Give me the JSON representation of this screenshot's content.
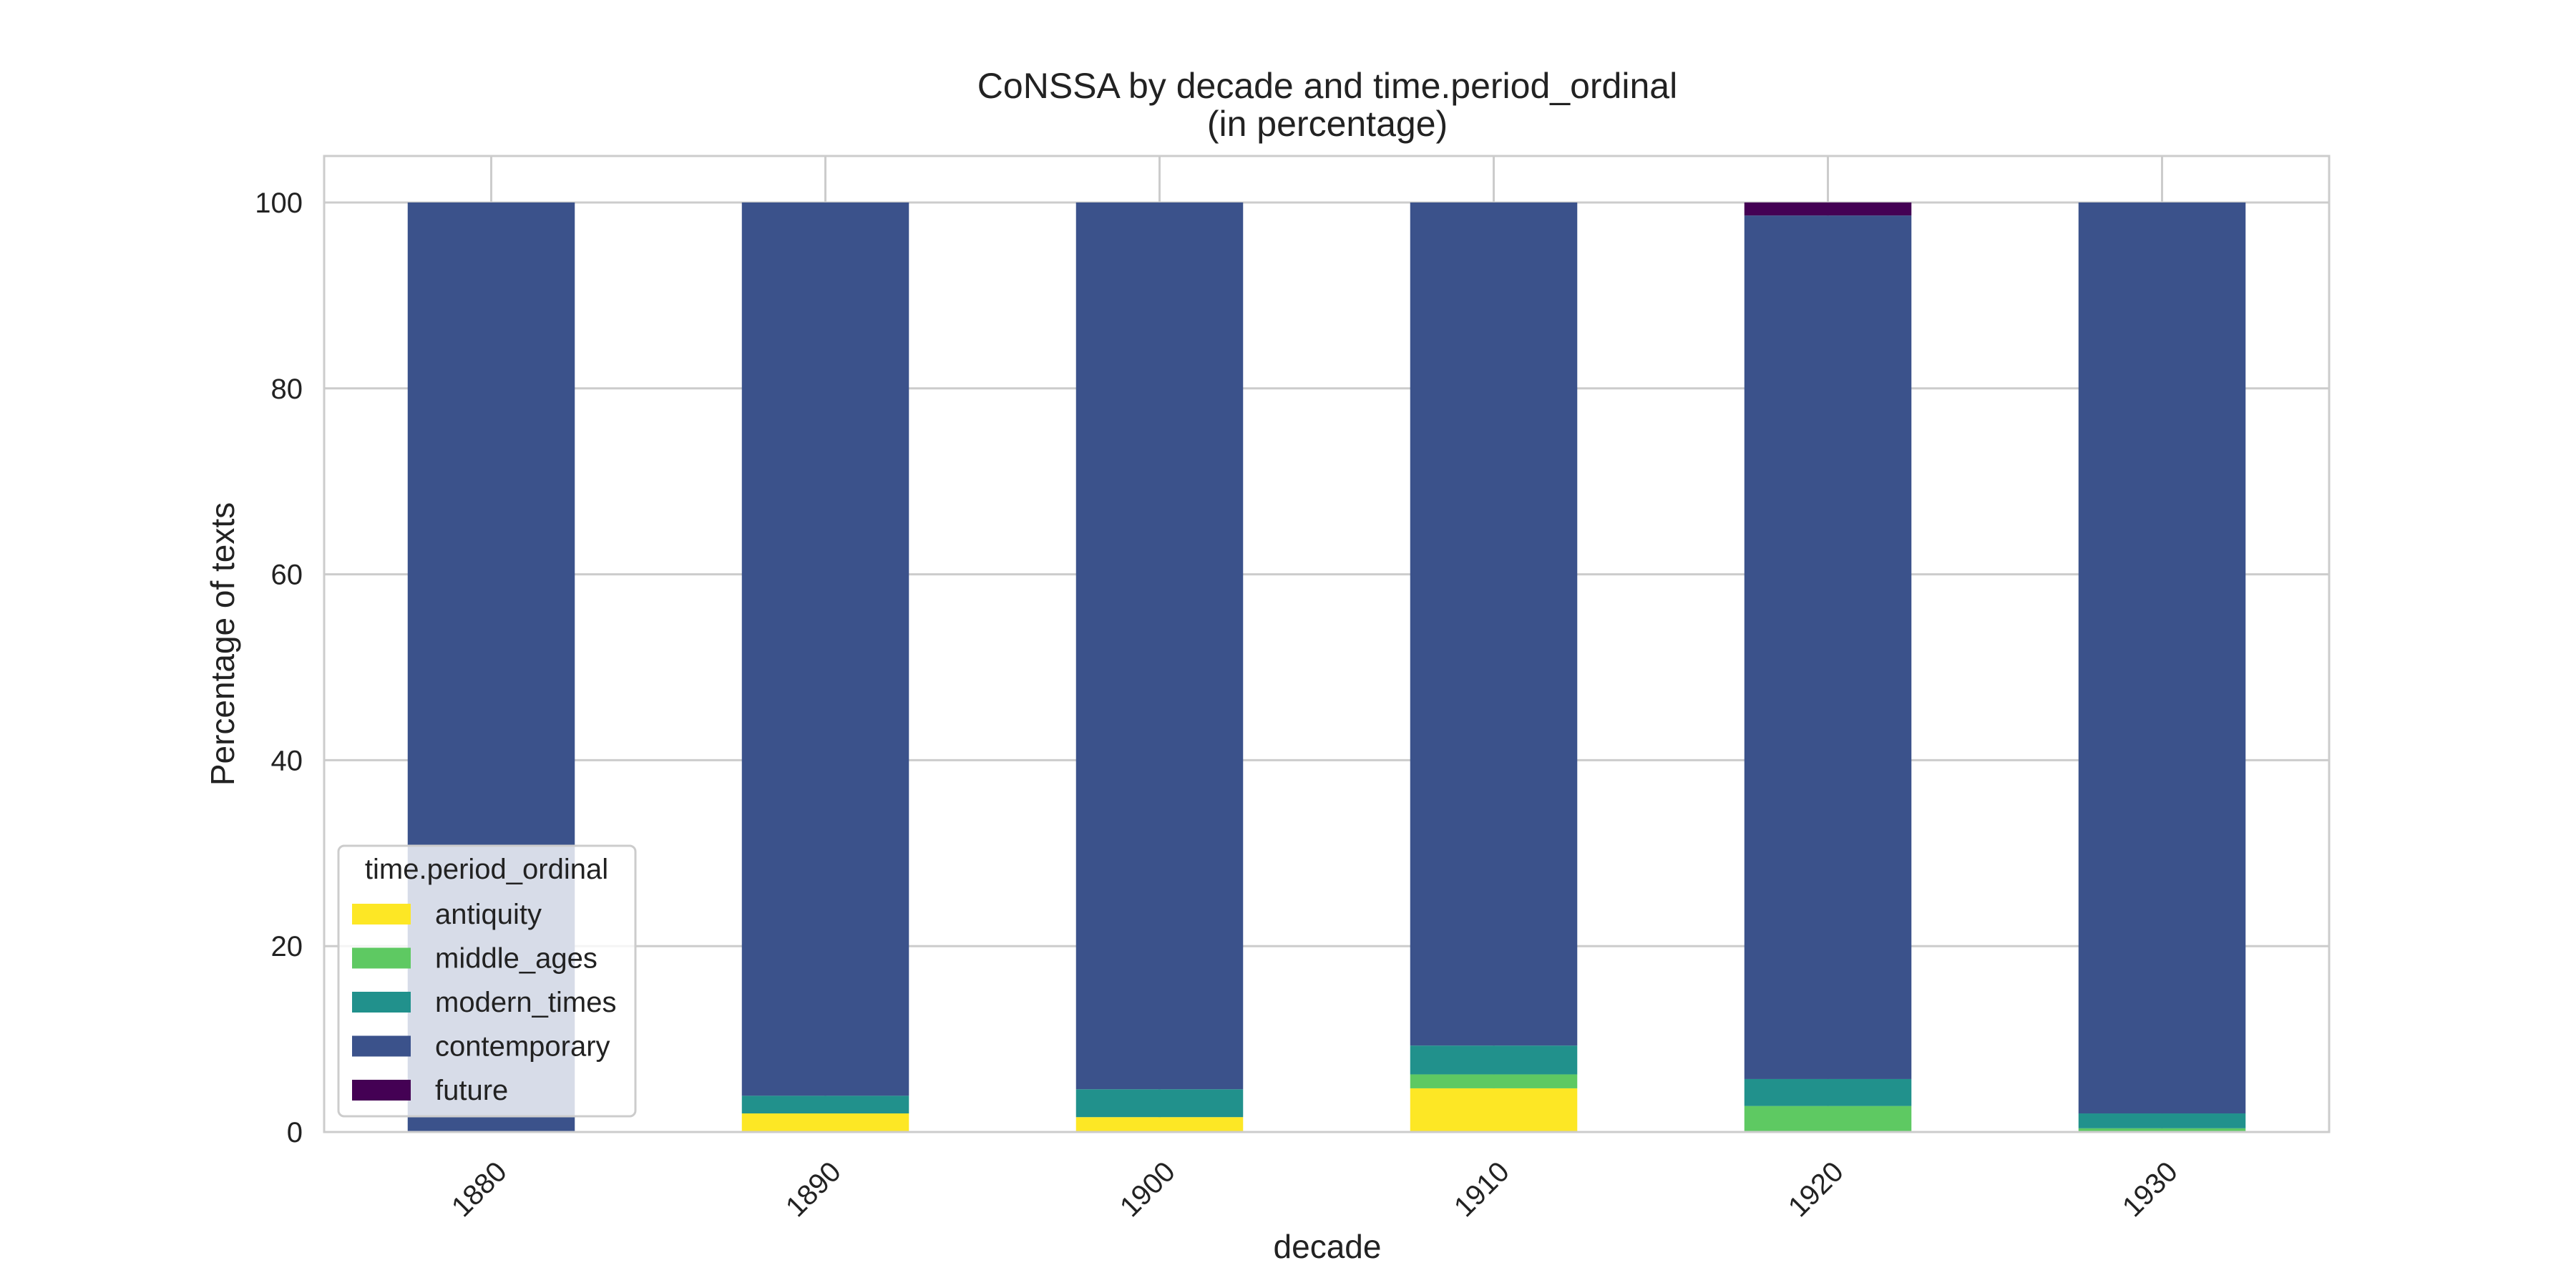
{
  "chart_data": {
    "type": "bar",
    "stacked": true,
    "title_line1": "CoNSSA by decade and time.period_ordinal",
    "title_line2": "(in percentage)",
    "xlabel": "decade",
    "ylabel": "Percentage of texts",
    "categories": [
      "1880",
      "1890",
      "1900",
      "1910",
      "1920",
      "1930"
    ],
    "ylim": [
      0,
      105
    ],
    "yticks": [
      0,
      20,
      40,
      60,
      80,
      100
    ],
    "grid": true,
    "legend": {
      "title": "time.period_ordinal",
      "placement": "lower-left"
    },
    "series": [
      {
        "name": "antiquity",
        "color": "#fde725",
        "values": [
          0,
          2.0,
          1.6,
          4.7,
          0,
          0
        ]
      },
      {
        "name": "middle_ages",
        "color": "#5ec962",
        "values": [
          0,
          0,
          0,
          1.5,
          2.8,
          0.4
        ]
      },
      {
        "name": "modern_times",
        "color": "#21918c",
        "values": [
          0,
          1.9,
          3.0,
          3.1,
          2.9,
          1.6
        ]
      },
      {
        "name": "contemporary",
        "color": "#3b528b",
        "values": [
          100,
          96.1,
          95.4,
          90.7,
          92.9,
          98.0
        ]
      },
      {
        "name": "future",
        "color": "#440154",
        "values": [
          0,
          0,
          0,
          0,
          1.4,
          0
        ]
      }
    ]
  }
}
